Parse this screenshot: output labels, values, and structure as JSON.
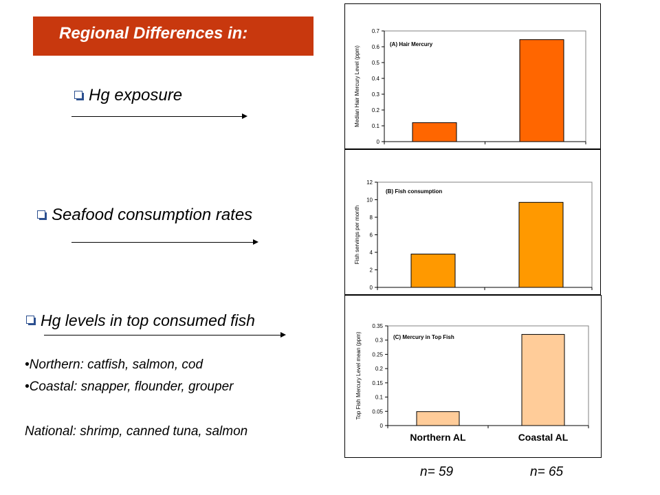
{
  "slide": {
    "title": "Regional Differences in:",
    "bullets": [
      {
        "text": "Hg exposure"
      },
      {
        "text": "Seafood consumption rates"
      },
      {
        "text": "Hg levels in top consumed fish"
      }
    ],
    "fish_lists": [
      "•Northern: catfish, salmon, cod",
      "•Coastal: snapper, flounder, grouper",
      "National: shrimp, canned tuna, salmon"
    ],
    "sample_sizes": [
      "n= 59",
      "n= 65"
    ],
    "colors": {
      "title_bg": "#c8380e",
      "bullet_box": "#2b4f8f"
    }
  },
  "chart_data": [
    {
      "type": "bar",
      "title": "(A)  Hair Mercury",
      "ylabel": "Median Hair Mercury Level (ppm)",
      "categories": [
        "Northern AL",
        "Coastal AL"
      ],
      "values": [
        0.12,
        0.645
      ],
      "ylim": [
        0,
        0.7
      ],
      "yticks": [
        0,
        0.1,
        0.2,
        0.3,
        0.4,
        0.5,
        0.6,
        0.7
      ],
      "ytick_labels": [
        "0",
        "0.1",
        "0.2",
        "0.3",
        "0.4",
        "0.5",
        "0.6",
        "0.7"
      ],
      "show_category_labels": false,
      "color": "#ff6600",
      "grid": false
    },
    {
      "type": "bar",
      "title": "(B)  Fish consumption",
      "ylabel": "Fish servings per month",
      "categories": [
        "Northern AL",
        "Coastal AL"
      ],
      "values": [
        3.8,
        9.7
      ],
      "ylim": [
        0,
        12
      ],
      "yticks": [
        0,
        2,
        4,
        6,
        8,
        10,
        12
      ],
      "ytick_labels": [
        "0",
        "2",
        "4",
        "6",
        "8",
        "10",
        "12"
      ],
      "show_category_labels": false,
      "color": "#ff9900",
      "grid": false
    },
    {
      "type": "bar",
      "title": "(C)  Mercury in Top Fish",
      "ylabel": "Top Fish Mercury Level mean (ppm)",
      "categories": [
        "Northern AL",
        "Coastal AL"
      ],
      "values": [
        0.049,
        0.32
      ],
      "ylim": [
        0,
        0.35
      ],
      "yticks": [
        0,
        0.05,
        0.1,
        0.15,
        0.2,
        0.25,
        0.3,
        0.35
      ],
      "ytick_labels": [
        "0",
        "0.05",
        "0.1",
        "0.15",
        "0.2",
        "0.25",
        "0.3",
        "0.35"
      ],
      "show_category_labels": true,
      "color": "#ffcc99",
      "grid": false
    }
  ]
}
